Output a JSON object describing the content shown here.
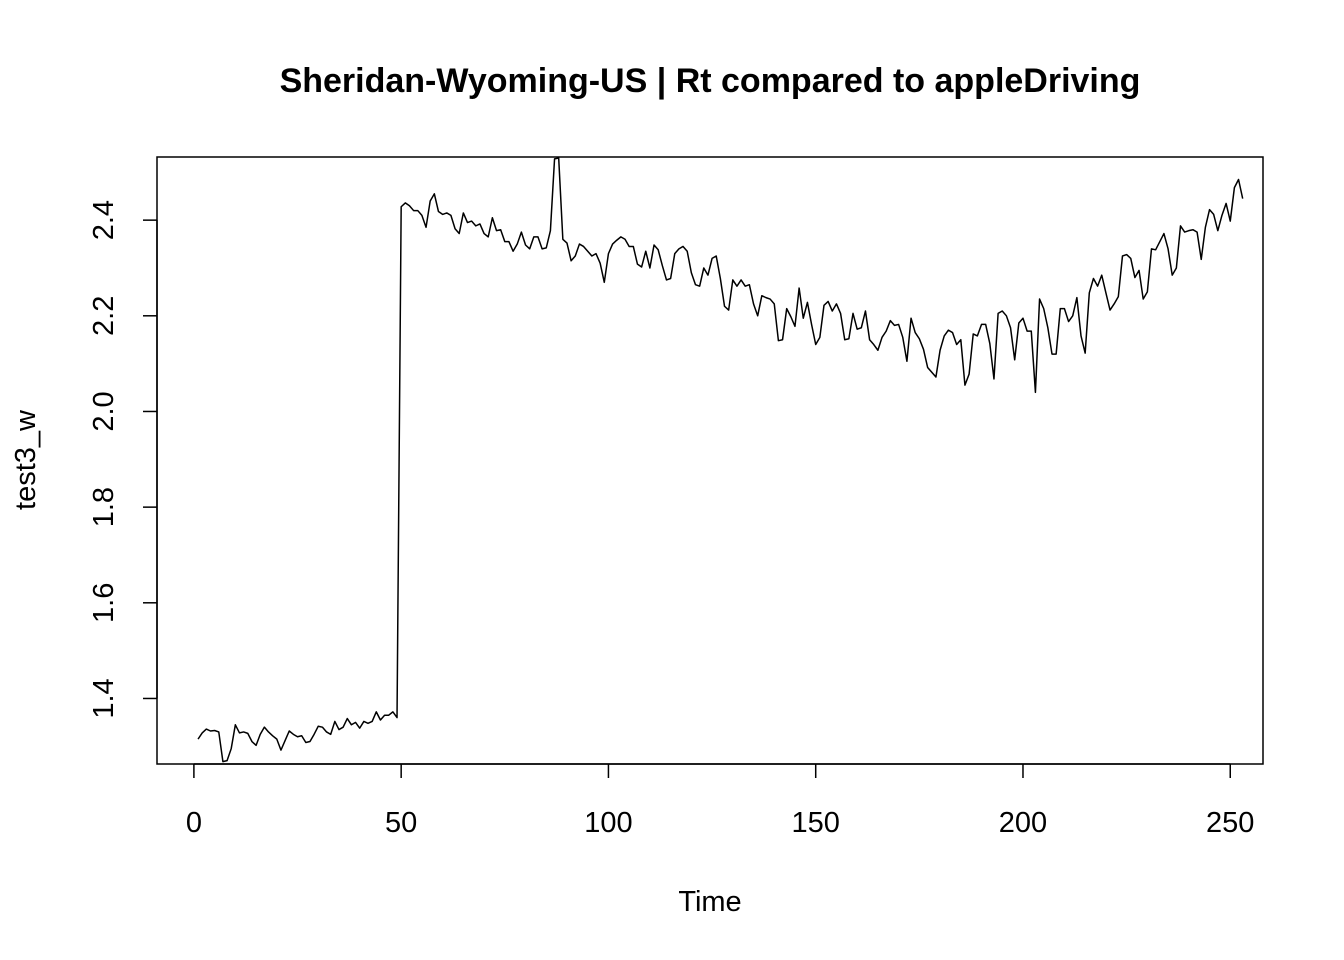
{
  "chart_data": {
    "type": "line",
    "title": "Sheridan-Wyoming-US | Rt compared to appleDriving",
    "xlabel": "Time",
    "ylabel": "test3_w",
    "xlim": [
      -8.9,
      257.9
    ],
    "ylim": [
      1.263,
      2.532
    ],
    "x_ticks": [
      0,
      50,
      100,
      150,
      200,
      250
    ],
    "y_ticks": [
      1.4,
      1.6,
      1.8,
      2.0,
      2.2,
      2.4
    ],
    "x_tick_labels": [
      "0",
      "50",
      "100",
      "150",
      "200",
      "250"
    ],
    "y_tick_labels": [
      "1.4",
      "1.6",
      "1.8",
      "2.0",
      "2.2",
      "2.4"
    ],
    "grid": false,
    "legend": "none",
    "line_color": "#000000",
    "series": [
      {
        "x_start": 1,
        "x_step": 1,
        "values": [
          1.315,
          1.328,
          1.336,
          1.332,
          1.333,
          1.33,
          1.268,
          1.27,
          1.295,
          1.345,
          1.328,
          1.33,
          1.327,
          1.31,
          1.302,
          1.325,
          1.34,
          1.33,
          1.322,
          1.315,
          1.292,
          1.312,
          1.332,
          1.325,
          1.32,
          1.322,
          1.308,
          1.31,
          1.325,
          1.342,
          1.34,
          1.33,
          1.325,
          1.352,
          1.335,
          1.34,
          1.358,
          1.345,
          1.35,
          1.338,
          1.352,
          1.348,
          1.352,
          1.372,
          1.355,
          1.365,
          1.365,
          1.372,
          1.36,
          2.428,
          2.436,
          2.43,
          2.42,
          2.42,
          2.41,
          2.385,
          2.44,
          2.455,
          2.418,
          2.412,
          2.415,
          2.41,
          2.382,
          2.372,
          2.415,
          2.395,
          2.398,
          2.388,
          2.392,
          2.372,
          2.365,
          2.405,
          2.378,
          2.38,
          2.355,
          2.355,
          2.335,
          2.35,
          2.375,
          2.348,
          2.34,
          2.365,
          2.365,
          2.34,
          2.342,
          2.378,
          2.528,
          2.53,
          2.36,
          2.352,
          2.315,
          2.325,
          2.35,
          2.345,
          2.335,
          2.325,
          2.33,
          2.31,
          2.27,
          2.33,
          2.35,
          2.358,
          2.365,
          2.36,
          2.345,
          2.345,
          2.308,
          2.302,
          2.335,
          2.3,
          2.348,
          2.338,
          2.305,
          2.275,
          2.278,
          2.33,
          2.34,
          2.345,
          2.335,
          2.29,
          2.265,
          2.262,
          2.3,
          2.285,
          2.32,
          2.325,
          2.278,
          2.22,
          2.212,
          2.275,
          2.262,
          2.275,
          2.262,
          2.265,
          2.225,
          2.2,
          2.242,
          2.238,
          2.235,
          2.225,
          2.148,
          2.15,
          2.215,
          2.198,
          2.178,
          2.258,
          2.195,
          2.228,
          2.182,
          2.14,
          2.155,
          2.222,
          2.23,
          2.21,
          2.225,
          2.205,
          2.15,
          2.152,
          2.205,
          2.172,
          2.175,
          2.21,
          2.15,
          2.14,
          2.128,
          2.155,
          2.168,
          2.19,
          2.18,
          2.182,
          2.155,
          2.105,
          2.195,
          2.165,
          2.152,
          2.13,
          2.092,
          2.082,
          2.072,
          2.128,
          2.158,
          2.17,
          2.165,
          2.14,
          2.15,
          2.055,
          2.078,
          2.162,
          2.158,
          2.182,
          2.182,
          2.142,
          2.068,
          2.205,
          2.21,
          2.2,
          2.175,
          2.108,
          2.185,
          2.195,
          2.168,
          2.168,
          2.04,
          2.235,
          2.215,
          2.175,
          2.12,
          2.12,
          2.215,
          2.215,
          2.188,
          2.2,
          2.238,
          2.158,
          2.122,
          2.248,
          2.278,
          2.262,
          2.285,
          2.248,
          2.212,
          2.225,
          2.24,
          2.325,
          2.328,
          2.32,
          2.28,
          2.295,
          2.235,
          2.25,
          2.34,
          2.338,
          2.355,
          2.372,
          2.34,
          2.285,
          2.3,
          2.388,
          2.375,
          2.378,
          2.38,
          2.375,
          2.318,
          2.385,
          2.422,
          2.412,
          2.378,
          2.41,
          2.435,
          2.398,
          2.468,
          2.485,
          2.445
        ]
      }
    ]
  }
}
